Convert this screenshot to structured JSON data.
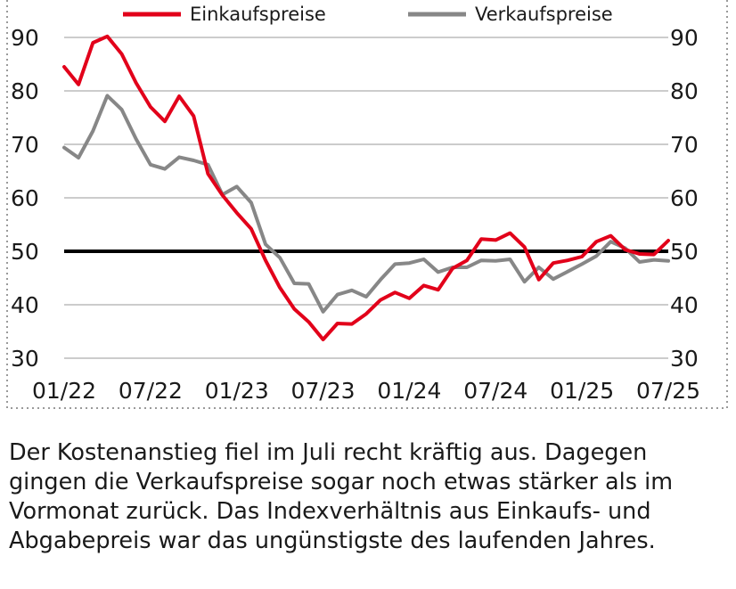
{
  "chart_data": {
    "type": "line",
    "x": [
      "2022-01",
      "2022-02",
      "2022-03",
      "2022-04",
      "2022-05",
      "2022-06",
      "2022-07",
      "2022-08",
      "2022-09",
      "2022-10",
      "2022-11",
      "2022-12",
      "2023-01",
      "2023-02",
      "2023-03",
      "2023-04",
      "2023-05",
      "2023-06",
      "2023-07",
      "2023-08",
      "2023-09",
      "2023-10",
      "2023-11",
      "2023-12",
      "2024-01",
      "2024-02",
      "2024-03",
      "2024-04",
      "2024-05",
      "2024-06",
      "2024-07",
      "2024-08",
      "2024-09",
      "2024-10",
      "2024-11",
      "2024-12",
      "2025-01",
      "2025-02",
      "2025-03",
      "2025-04",
      "2025-05",
      "2025-06",
      "2025-07"
    ],
    "series": [
      {
        "name": "Einkaufspreise",
        "color": "#e2001a",
        "values": [
          84.5,
          81.2,
          89.0,
          90.2,
          86.9,
          81.5,
          77.0,
          74.3,
          79.0,
          75.3,
          64.5,
          60.5,
          57.2,
          54.2,
          48.3,
          43.2,
          39.2,
          36.8,
          33.5,
          36.5,
          36.4,
          38.3,
          40.9,
          42.3,
          41.2,
          43.6,
          42.8,
          46.8,
          48.3,
          52.3,
          52.1,
          53.4,
          50.8,
          44.7,
          47.8,
          48.3,
          49.0,
          51.8,
          52.9,
          50.3,
          49.5,
          49.4,
          52.0
        ]
      },
      {
        "name": "Verkaufspreise",
        "color": "#878787",
        "values": [
          69.4,
          67.5,
          72.5,
          79.1,
          76.5,
          71.0,
          66.2,
          65.4,
          67.6,
          67.0,
          66.2,
          60.6,
          62.1,
          59.1,
          51.3,
          48.8,
          44.0,
          43.9,
          38.7,
          41.9,
          42.7,
          41.5,
          44.7,
          47.6,
          47.8,
          48.5,
          46.1,
          47.0,
          47.0,
          48.3,
          48.2,
          48.5,
          44.3,
          47.0,
          44.8,
          46.2,
          47.6,
          49.1,
          51.8,
          50.6,
          48.0,
          48.4,
          48.2
        ]
      }
    ],
    "reference_line": 50,
    "x_tick_labels": [
      "01/22",
      "07/22",
      "01/23",
      "07/23",
      "01/24",
      "07/24",
      "01/25",
      "07/25"
    ],
    "y_ticks": [
      30,
      40,
      50,
      60,
      70,
      80,
      90
    ],
    "ylim": [
      30,
      90
    ],
    "y_axis_sides": "left and right",
    "grid": true,
    "legend_placement": "top"
  },
  "caption": "Der Kostenanstieg fiel im Juli recht kräftig aus. Dagegen gingen die Verkaufspreise sogar noch etwas stärker als im Vormonat zurück. Das Indexverhältnis aus Einkaufs- und Abgabepreis war das ungünstigste des laufenden Jahres."
}
